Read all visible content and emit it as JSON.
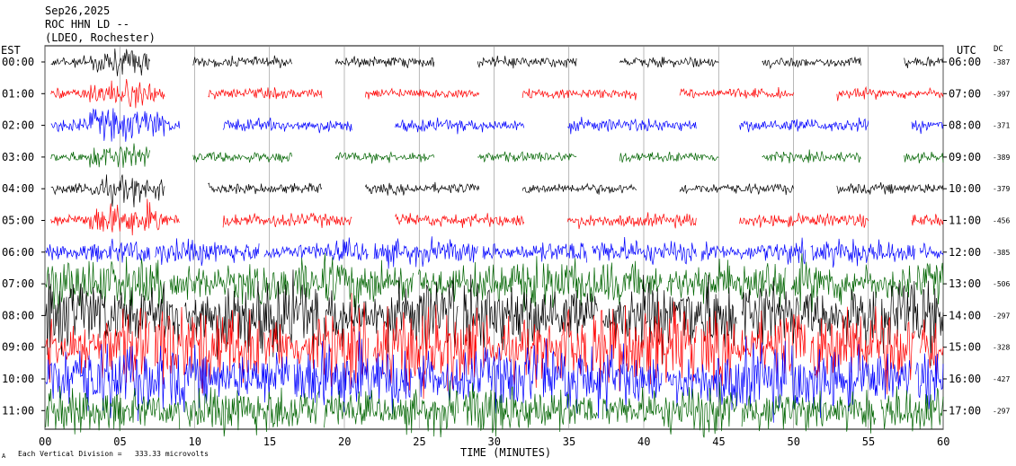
{
  "header": {
    "date": "Sep26,2025",
    "station": "ROC HHN LD --",
    "network": "(LDEO, Rochester)"
  },
  "labels": {
    "left_timezone": "EST",
    "right_timezone": "UTC",
    "dc_label": "DC",
    "x_axis_label": "TIME (MINUTES)",
    "footnote_prefix": "Each Vertical Division = ",
    "footnote_value": "333.33 microvolts",
    "footnote_mark": "A"
  },
  "chart_data": {
    "type": "line",
    "title": "ROC HHN LD --",
    "xlabel": "TIME (MINUTES)",
    "x_ticks": [
      "00",
      "05",
      "10",
      "15",
      "20",
      "25",
      "30",
      "35",
      "40",
      "45",
      "50",
      "55",
      "60"
    ],
    "xlim": [
      0,
      60
    ],
    "grid": true,
    "trace_colors": [
      "#000000",
      "#ff0000",
      "#0000ff",
      "#006400"
    ],
    "rows": [
      {
        "est": "00:00",
        "utc": "06:00",
        "dc": "-387"
      },
      {
        "est": "01:00",
        "utc": "07:00",
        "dc": "-397"
      },
      {
        "est": "02:00",
        "utc": "08:00",
        "dc": "-371"
      },
      {
        "est": "03:00",
        "utc": "09:00",
        "dc": "-389"
      },
      {
        "est": "04:00",
        "utc": "10:00",
        "dc": "-379"
      },
      {
        "est": "05:00",
        "utc": "11:00",
        "dc": "-456"
      },
      {
        "est": "06:00",
        "utc": "12:00",
        "dc": "-385"
      },
      {
        "est": "07:00",
        "utc": "13:00",
        "dc": "-506"
      },
      {
        "est": "08:00",
        "utc": "14:00",
        "dc": "-297"
      },
      {
        "est": "09:00",
        "utc": "15:00",
        "dc": "-328"
      },
      {
        "est": "10:00",
        "utc": "16:00",
        "dc": "-427"
      },
      {
        "est": "11:00",
        "utc": "17:00",
        "dc": "-297"
      }
    ]
  }
}
